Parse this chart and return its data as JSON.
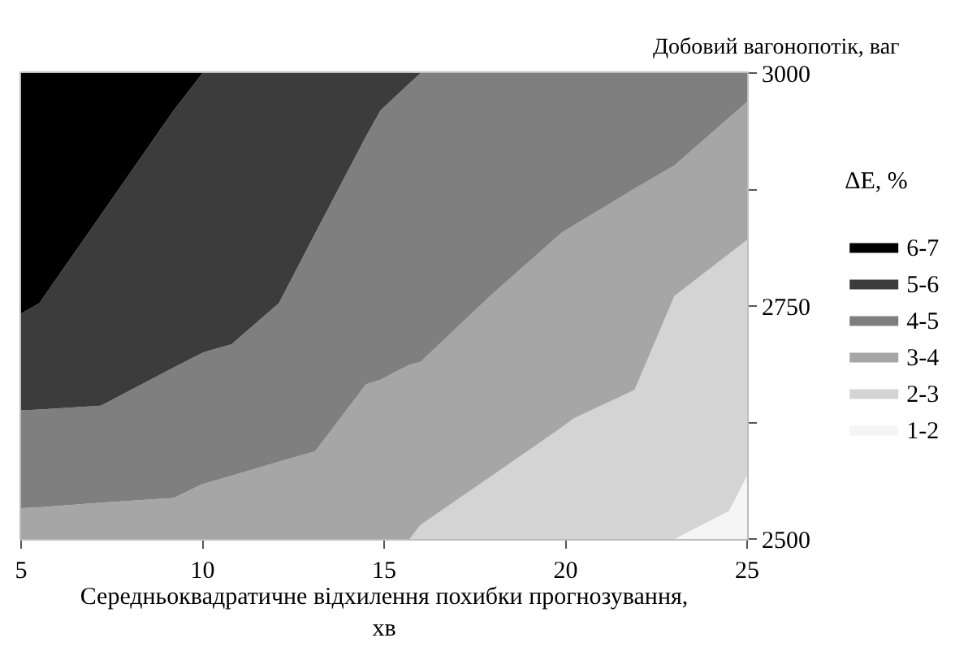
{
  "chart_data": {
    "type": "area",
    "xlabel": "Середньоквадратичне відхилення похибки прогнозування,\nхв",
    "ylabel": "Добовий вагонопотік, ваг",
    "legend_title": "ΔE, %",
    "legend": "right",
    "xlim": [
      5,
      25
    ],
    "xticks": [
      5,
      10,
      15,
      20,
      25
    ],
    "ylim": [
      2500,
      3000
    ],
    "yticks": [
      2500,
      {
        "value": 2625,
        "label": null
      },
      2750,
      {
        "value": 2875,
        "label": null
      },
      3000
    ],
    "x": [
      5,
      5.5,
      7.2,
      9.2,
      10,
      10.8,
      12.1,
      13.1,
      14.5,
      14.9,
      15.7,
      16,
      17.9,
      19.9,
      20.2,
      21.9,
      23,
      24.5,
      25
    ],
    "series": [
      {
        "name": "1-2",
        "color": "#f5f5f5",
        "values": [
          2500,
          2500,
          2500,
          2500,
          2500,
          2500,
          2500,
          2500,
          2500,
          2500,
          2500,
          2500,
          2500,
          2500,
          2500,
          2500,
          2500,
          2530,
          2568
        ]
      },
      {
        "name": "2-3",
        "color": "#d4d4d4",
        "values": [
          2500,
          2500,
          2500,
          2500,
          2500,
          2500,
          2500,
          2500,
          2500,
          2500,
          2500,
          2515,
          2566,
          2620,
          2629,
          2660,
          2761,
          2806,
          2821
        ]
      },
      {
        "name": "3-4",
        "color": "#a6a6a6",
        "values": [
          2533,
          2534,
          2539,
          2544,
          2559,
          2568,
          2583,
          2594,
          2666,
          2671,
          2687,
          2690,
          2760,
          2829,
          2836,
          2876,
          2901,
          2952,
          2969
        ]
      },
      {
        "name": "4-5",
        "color": "#7f7f7f",
        "values": [
          2638,
          2639,
          2643,
          2684,
          2700,
          2709,
          2753,
          2828,
          2932,
          2960,
          2989,
          3000,
          3000,
          3000,
          3000,
          3000,
          3000,
          3000,
          3000
        ]
      },
      {
        "name": "5-6",
        "color": "#3c3c3c",
        "values": [
          2742,
          2753,
          2848,
          2960,
          3000,
          3000,
          3000,
          3000,
          3000,
          3000,
          3000,
          3000,
          3000,
          3000,
          3000,
          3000,
          3000,
          3000,
          3000
        ]
      },
      {
        "name": "6-7",
        "color": "#000000",
        "values": [
          3000,
          3000,
          3000,
          3000,
          3000,
          3000,
          3000,
          3000,
          3000,
          3000,
          3000,
          3000,
          3000,
          3000,
          3000,
          3000,
          3000,
          3000,
          3000
        ]
      }
    ]
  }
}
